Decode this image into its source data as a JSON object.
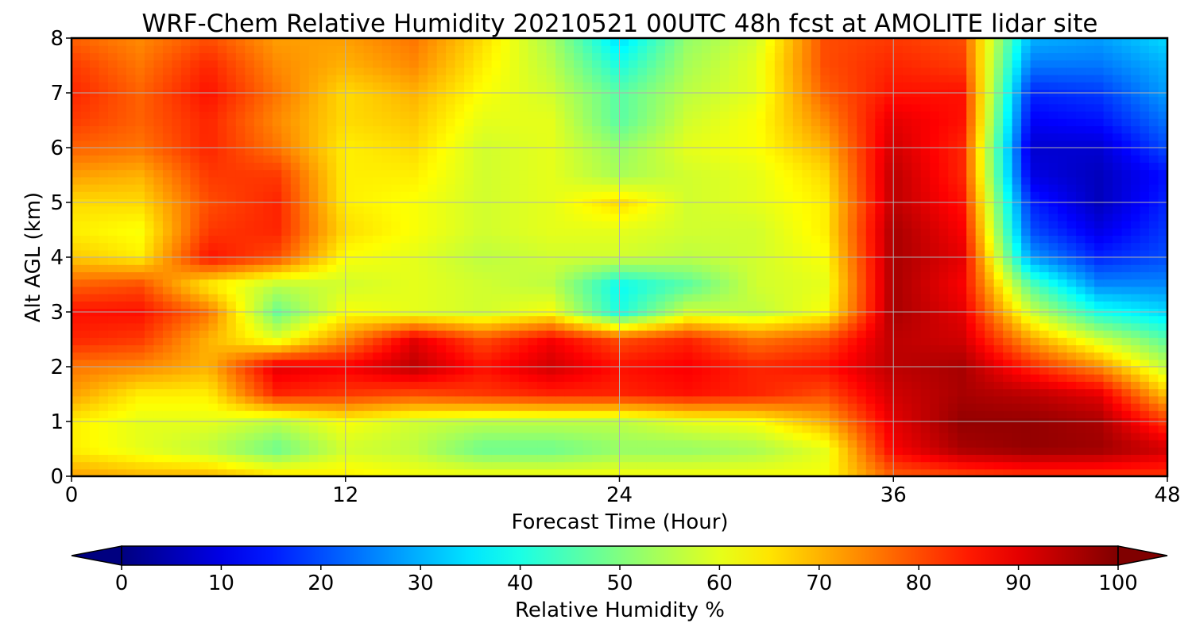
{
  "chart_data": {
    "type": "heatmap",
    "title": "WRF-Chem Relative Humidity 20210521 00UTC 48h fcst at AMOLITE lidar site",
    "xlabel": "Forecast Time (Hour)",
    "ylabel": "Alt AGL (km)",
    "xlim": [
      0,
      48
    ],
    "ylim": [
      0,
      8
    ],
    "x_ticks": [
      0,
      12,
      24,
      36,
      48
    ],
    "y_ticks": [
      0,
      1,
      2,
      3,
      4,
      5,
      6,
      7,
      8
    ],
    "grid": true,
    "colorbar": {
      "label": "Relative Humidity %",
      "ticks": [
        0,
        10,
        20,
        30,
        40,
        50,
        60,
        70,
        80,
        90,
        100
      ],
      "range": [
        0,
        100
      ],
      "colormap": "jet",
      "extend": "both"
    },
    "x": [
      0,
      3,
      6,
      9,
      12,
      15,
      18,
      21,
      24,
      27,
      30,
      33,
      36,
      39,
      42,
      45,
      48
    ],
    "y": [
      0,
      0.5,
      1,
      1.5,
      2,
      2.5,
      3,
      3.5,
      4,
      4.5,
      5,
      5.5,
      6,
      6.5,
      7,
      7.5,
      8
    ],
    "z": [
      [
        72,
        70,
        70,
        66,
        64,
        62,
        62,
        62,
        62,
        62,
        62,
        62,
        78,
        80,
        82,
        82,
        82
      ],
      [
        64,
        60,
        56,
        48,
        58,
        56,
        48,
        48,
        52,
        52,
        54,
        60,
        88,
        96,
        98,
        97,
        92
      ],
      [
        64,
        60,
        60,
        56,
        62,
        58,
        56,
        56,
        56,
        60,
        62,
        70,
        90,
        98,
        98,
        96,
        82
      ],
      [
        72,
        64,
        64,
        84,
        82,
        80,
        82,
        84,
        84,
        86,
        84,
        80,
        92,
        96,
        94,
        90,
        68
      ],
      [
        76,
        74,
        70,
        90,
        88,
        94,
        86,
        92,
        86,
        88,
        84,
        86,
        94,
        96,
        84,
        74,
        56
      ],
      [
        84,
        82,
        70,
        60,
        74,
        90,
        80,
        88,
        80,
        84,
        76,
        80,
        94,
        92,
        72,
        58,
        46
      ],
      [
        86,
        86,
        76,
        48,
        62,
        60,
        58,
        62,
        40,
        58,
        56,
        62,
        96,
        90,
        58,
        40,
        34
      ],
      [
        78,
        80,
        64,
        56,
        58,
        60,
        58,
        56,
        38,
        46,
        58,
        60,
        96,
        88,
        46,
        26,
        26
      ],
      [
        68,
        64,
        86,
        80,
        62,
        60,
        56,
        58,
        58,
        56,
        58,
        62,
        96,
        90,
        28,
        16,
        20
      ],
      [
        64,
        62,
        82,
        84,
        66,
        62,
        58,
        60,
        60,
        58,
        58,
        64,
        96,
        88,
        20,
        10,
        18
      ],
      [
        66,
        66,
        80,
        84,
        64,
        62,
        58,
        60,
        66,
        58,
        60,
        64,
        94,
        86,
        16,
        6,
        16
      ],
      [
        72,
        70,
        82,
        82,
        64,
        64,
        58,
        60,
        54,
        58,
        60,
        66,
        94,
        84,
        10,
        6,
        14
      ],
      [
        78,
        76,
        84,
        76,
        64,
        66,
        58,
        60,
        52,
        60,
        62,
        70,
        92,
        84,
        8,
        8,
        20
      ],
      [
        82,
        78,
        84,
        74,
        66,
        68,
        60,
        60,
        46,
        58,
        62,
        74,
        90,
        86,
        12,
        14,
        24
      ],
      [
        84,
        78,
        86,
        76,
        66,
        70,
        62,
        58,
        46,
        56,
        60,
        78,
        86,
        86,
        16,
        18,
        28
      ],
      [
        82,
        76,
        84,
        74,
        70,
        74,
        64,
        56,
        40,
        54,
        60,
        80,
        84,
        82,
        24,
        24,
        30
      ],
      [
        78,
        74,
        80,
        72,
        72,
        76,
        66,
        54,
        34,
        52,
        58,
        80,
        82,
        80,
        30,
        28,
        34
      ]
    ]
  }
}
